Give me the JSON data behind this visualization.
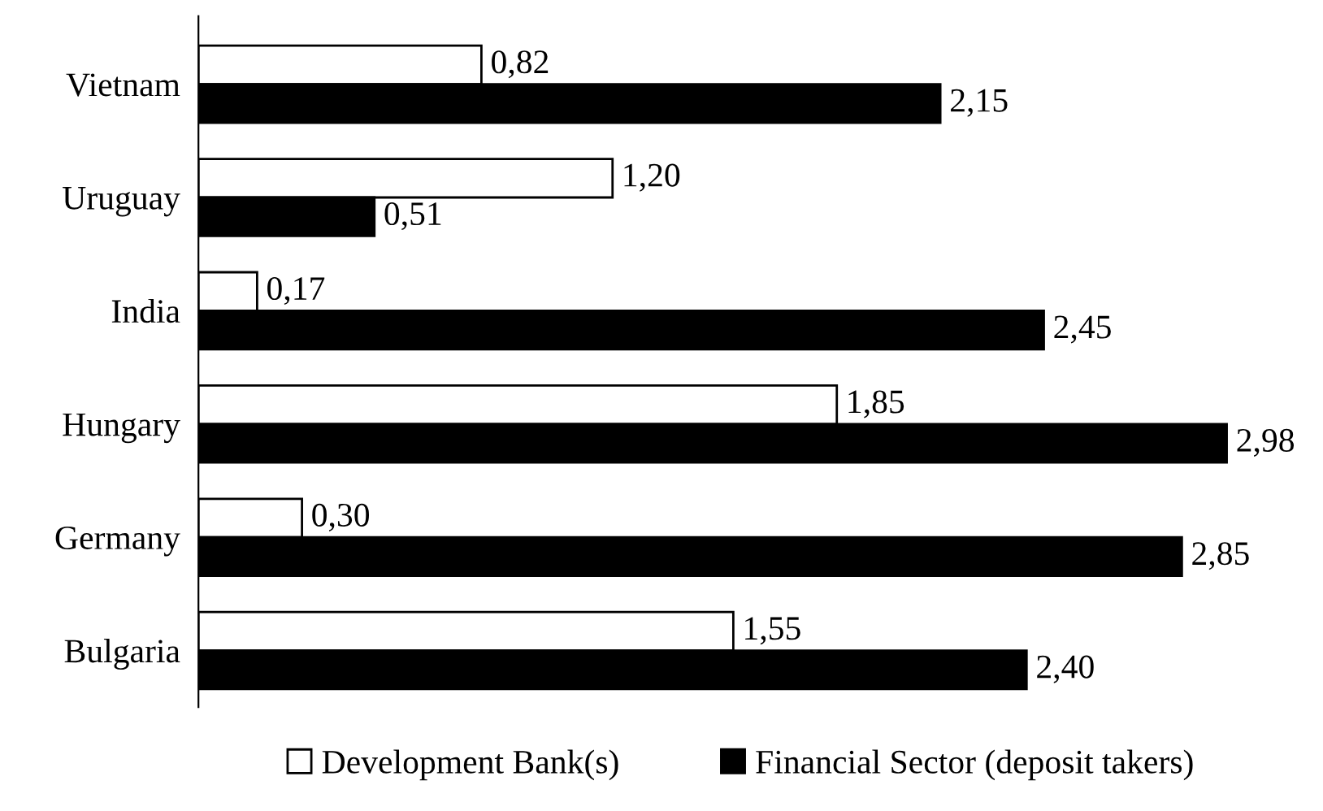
{
  "chart_data": {
    "type": "bar",
    "orientation": "horizontal",
    "categories": [
      "Vietnam",
      "Uruguay",
      "India",
      "Hungary",
      "Germany",
      "Bulgaria"
    ],
    "series": [
      {
        "name": "Development Bank(s)",
        "color": "#ffffff",
        "values": [
          0.82,
          1.2,
          0.17,
          1.85,
          0.3,
          1.55
        ],
        "value_labels": [
          "0,82",
          "1,20",
          "0,17",
          "1,85",
          "0,30",
          "1,55"
        ]
      },
      {
        "name": "Financial Sector (deposit takers)",
        "color": "#000000",
        "values": [
          2.15,
          0.51,
          2.45,
          2.98,
          2.85,
          2.4
        ],
        "value_labels": [
          "2,15",
          "0,51",
          "2,45",
          "2,98",
          "2,85",
          "2,40"
        ]
      }
    ],
    "legend": "bottom",
    "grid": false
  }
}
